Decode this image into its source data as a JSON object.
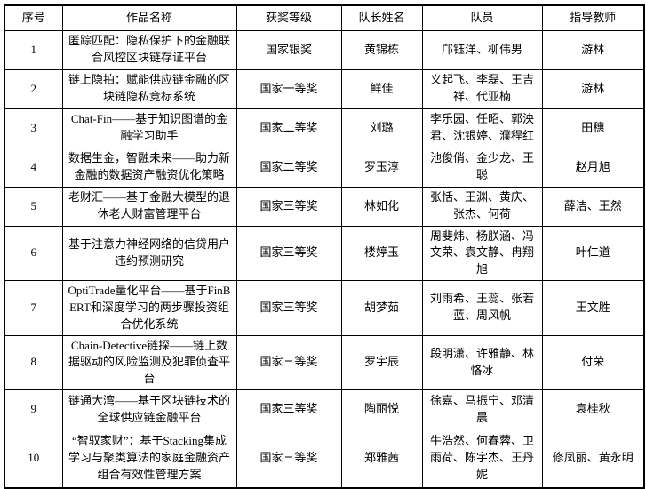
{
  "table": {
    "headers": [
      "序号",
      "作品名称",
      "获奖等级",
      "队长姓名",
      "队员",
      "指导教师"
    ],
    "rows": [
      {
        "index": "1",
        "title": "匿踪匹配：隐私保护下的金融联合风控区块链存证平台",
        "award": "国家银奖",
        "captain": "黄锦栋",
        "members": "邝钰洋、柳伟男",
        "advisor": "游林"
      },
      {
        "index": "2",
        "title": "链上隐拍：赋能供应链金融的区块链隐私竞标系统",
        "award": "国家一等奖",
        "captain": "鲜佳",
        "members": "义起飞、李磊、王吉祥、代亚楠",
        "advisor": "游林"
      },
      {
        "index": "3",
        "title": "Chat-Fin——基于知识图谱的金融学习助手",
        "award": "国家二等奖",
        "captain": "刘璐",
        "members": "李乐园、任昭、郭泱君、沈银婷、濮程红",
        "advisor": "田穗"
      },
      {
        "index": "4",
        "title": "数据生金，智融未来——助力新金融的数据资产融资优化策略",
        "award": "国家二等奖",
        "captain": "罗玉淳",
        "members": "池俊俏、金少龙、王聪",
        "advisor": "赵月旭"
      },
      {
        "index": "5",
        "title": "老财汇——基于金融大模型的退休老人财富管理平台",
        "award": "国家三等奖",
        "captain": "林如化",
        "members": "张恬、王渊、黄庆、张杰、何荷",
        "advisor": "薛洁、王然"
      },
      {
        "index": "6",
        "title": "基于注意力神经网络的信贷用户违约预测研究",
        "award": "国家三等奖",
        "captain": "楼婷玉",
        "members": "周斐炜、杨朕涵、冯文荣、袁文静、冉翔旭",
        "advisor": "叶仁道"
      },
      {
        "index": "7",
        "title": "OptiTrade量化平台——基于FinBERT和深度学习的两步骤投资组合优化系统",
        "award": "国家三等奖",
        "captain": "胡梦茹",
        "members": "刘雨希、王蕊、张若蓝、周风帆",
        "advisor": "王文胜"
      },
      {
        "index": "8",
        "title": "Chain-Detective链探——链上数据驱动的风险监测及犯罪侦查平台",
        "award": "国家三等奖",
        "captain": "罗宇辰",
        "members": "段明潇、许雅静、林恪冰",
        "advisor": "付荣"
      },
      {
        "index": "9",
        "title": "链通大湾——基于区块链技术的全球供应链金融平台",
        "award": "国家三等奖",
        "captain": "陶丽悦",
        "members": "徐嘉、马振宁、邓清晨",
        "advisor": "袁桂秋"
      },
      {
        "index": "10",
        "title": "“智驭家财”：基于Stacking集成学习与聚类算法的家庭金融资产组合有效性管理方案",
        "award": "国家三等奖",
        "captain": "郑雅茜",
        "members": "牛浩然、何春蓉、卫雨荷、陈宇杰、王丹妮",
        "advisor": "修凤丽、黄永明"
      }
    ]
  }
}
